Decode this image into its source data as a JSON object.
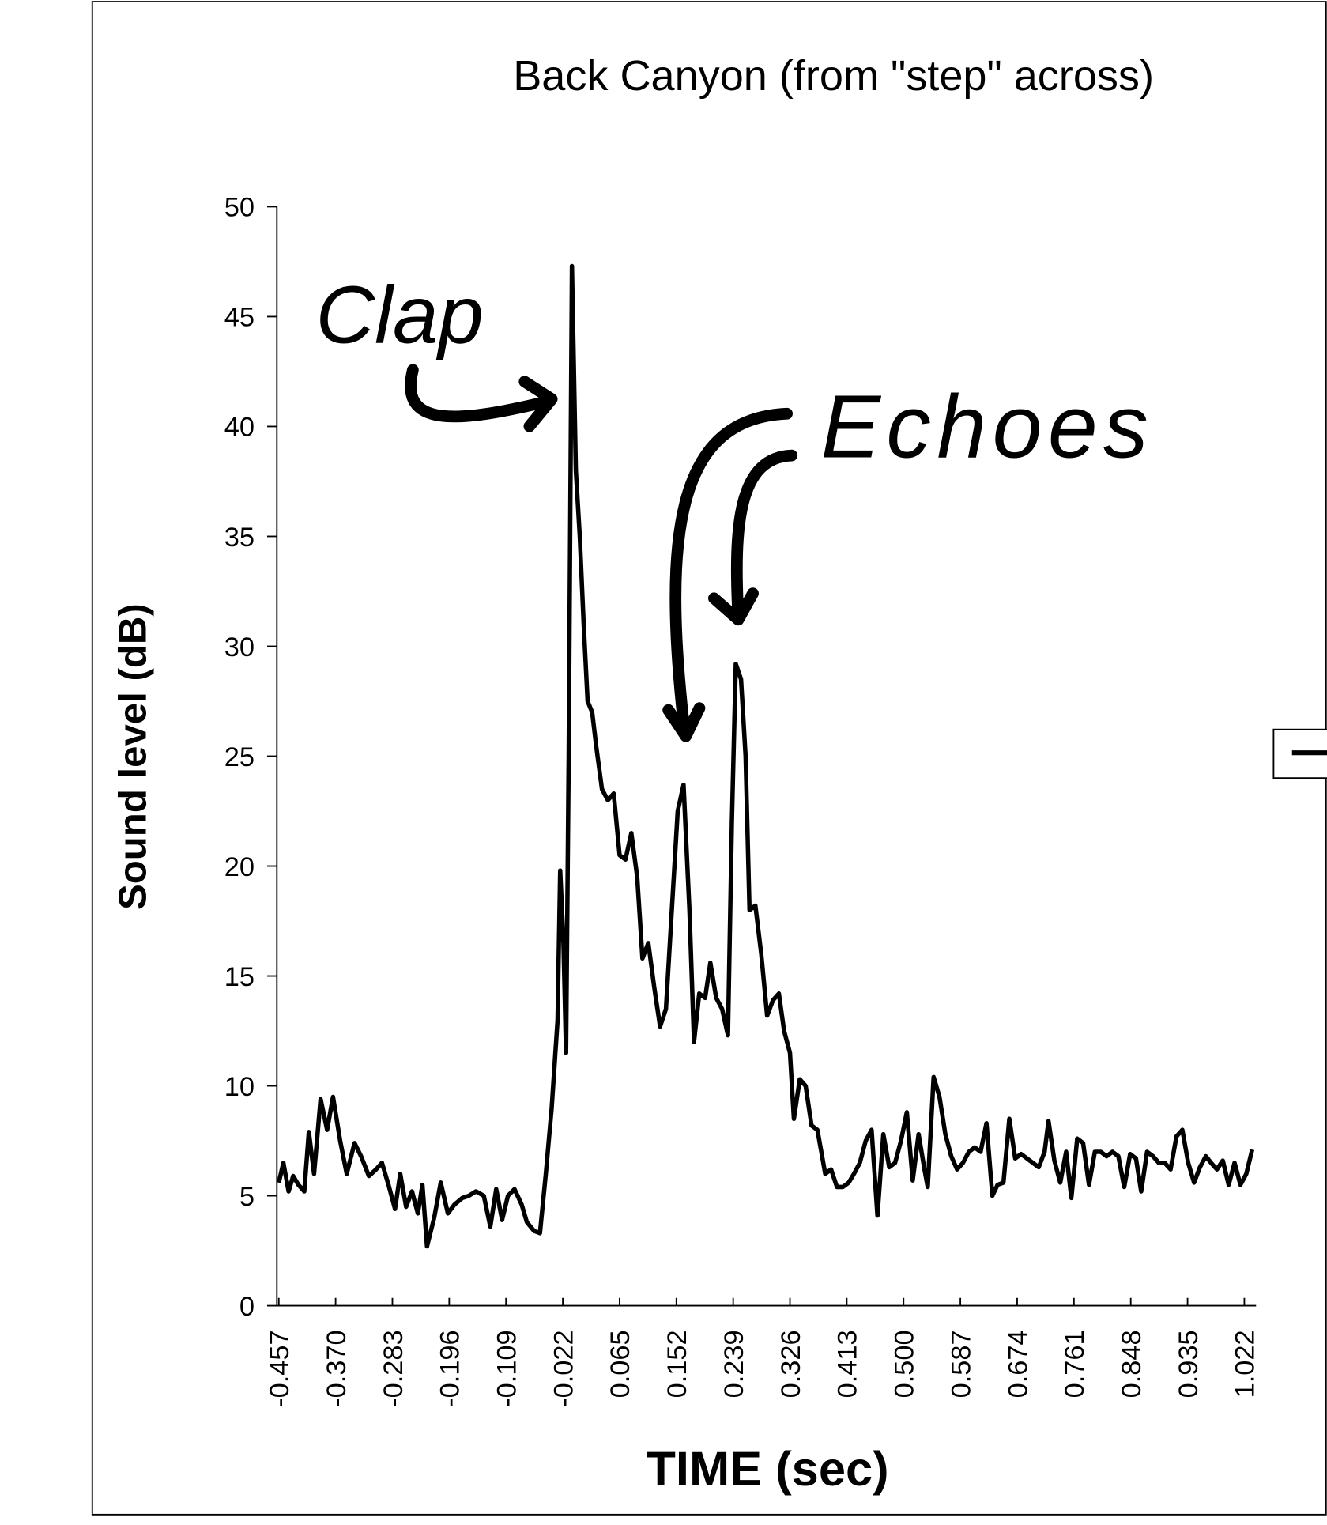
{
  "chart_data": {
    "type": "line",
    "title": "Back Canyon (from \"step\" across)",
    "x_label": "TIME (sec)",
    "y_label": "Sound level (dB)",
    "annotations": [
      "Clap",
      "Echoes"
    ],
    "color": "#000000",
    "xlim": [
      -0.457,
      1.037
    ],
    "ylim": [
      0,
      50
    ],
    "yticks": [
      0,
      5,
      10,
      15,
      20,
      25,
      30,
      35,
      40,
      45,
      50
    ],
    "xticks": [
      -0.457,
      {
        "value": -0.37,
        "label": "-0.370"
      },
      -0.283,
      -0.196,
      -0.109,
      -0.022,
      0.065,
      0.152,
      0.239,
      0.326,
      0.413,
      {
        "value": 0.5,
        "label": "0.500"
      },
      0.587,
      0.674,
      0.761,
      0.848,
      0.935,
      1.022
    ],
    "x": [
      -0.457,
      -0.45,
      -0.442,
      -0.435,
      -0.427,
      -0.418,
      -0.411,
      -0.403,
      -0.393,
      -0.383,
      -0.374,
      -0.363,
      -0.353,
      -0.341,
      -0.331,
      -0.319,
      -0.308,
      -0.299,
      -0.289,
      -0.279,
      -0.271,
      -0.262,
      -0.253,
      -0.244,
      -0.237,
      -0.23,
      -0.219,
      -0.209,
      -0.198,
      -0.188,
      -0.176,
      -0.166,
      -0.155,
      -0.143,
      -0.133,
      -0.124,
      -0.115,
      -0.106,
      -0.096,
      -0.085,
      -0.077,
      -0.066,
      -0.057,
      -0.048,
      -0.039,
      -0.03,
      -0.026,
      -0.021,
      -0.017,
      -0.013,
      -0.008,
      -0.002,
      0.004,
      0.01,
      0.016,
      0.023,
      0.029,
      0.038,
      0.047,
      0.056,
      0.065,
      0.074,
      0.083,
      0.092,
      0.1,
      0.109,
      0.118,
      0.127,
      0.136,
      0.145,
      0.154,
      0.163,
      0.172,
      0.179,
      0.187,
      0.196,
      0.204,
      0.213,
      0.222,
      0.231,
      0.237,
      0.243,
      0.251,
      0.258,
      0.264,
      0.273,
      0.282,
      0.291,
      0.3,
      0.309,
      0.317,
      0.326,
      0.332,
      0.341,
      0.35,
      0.359,
      0.368,
      0.38,
      0.389,
      0.398,
      0.407,
      0.416,
      0.424,
      0.433,
      0.442,
      0.451,
      0.46,
      0.469,
      0.478,
      0.487,
      0.496,
      0.505,
      0.514,
      0.523,
      0.532,
      0.537,
      0.546,
      0.555,
      0.564,
      0.573,
      0.582,
      0.591,
      0.6,
      0.609,
      0.618,
      0.627,
      0.636,
      0.644,
      0.653,
      0.662,
      0.671,
      0.68,
      0.689,
      0.698,
      0.707,
      0.716,
      0.722,
      0.731,
      0.74,
      0.749,
      0.757,
      0.766,
      0.775,
      0.784,
      0.793,
      0.802,
      0.811,
      0.82,
      0.829,
      0.838,
      0.847,
      0.856,
      0.864,
      0.873,
      0.882,
      0.891,
      0.9,
      0.909,
      0.918,
      0.927,
      0.936,
      0.945,
      0.954,
      0.963,
      0.971,
      0.98,
      0.989,
      0.998,
      1.007,
      1.016,
      1.025,
      1.034
    ],
    "values": [
      5.6,
      6.5,
      5.2,
      5.9,
      5.5,
      5.2,
      7.9,
      6.0,
      9.4,
      8.0,
      9.5,
      7.5,
      6.0,
      7.4,
      6.8,
      5.9,
      6.2,
      6.5,
      5.5,
      4.4,
      6.0,
      4.5,
      5.2,
      4.2,
      5.5,
      2.7,
      4.0,
      5.6,
      4.2,
      4.6,
      4.9,
      5.0,
      5.2,
      5.0,
      3.6,
      5.3,
      3.9,
      5.0,
      5.3,
      4.6,
      3.8,
      3.4,
      3.3,
      6.0,
      9.0,
      13,
      19.8,
      16.5,
      11.5,
      25,
      47.3,
      38,
      35,
      31,
      27.5,
      27,
      25.5,
      23.5,
      23,
      23.3,
      20.5,
      20.3,
      21.5,
      19.5,
      15.8,
      16.5,
      14.5,
      12.7,
      13.5,
      18,
      22.5,
      23.7,
      18,
      12,
      14.2,
      14,
      15.6,
      14,
      13.5,
      12.3,
      22,
      29.2,
      28.5,
      25,
      18,
      18.2,
      16,
      13.2,
      13.9,
      14.2,
      12.5,
      11.5,
      8.5,
      10.3,
      10,
      8.2,
      8,
      6,
      6.2,
      5.4,
      5.4,
      5.6,
      6,
      6.5,
      7.5,
      8.0,
      4.1,
      7.8,
      6.3,
      6.5,
      7.5,
      8.8,
      5.7,
      7.8,
      6.2,
      5.4,
      10.4,
      9.5,
      7.8,
      6.8,
      6.2,
      6.5,
      7.0,
      7.2,
      7.0,
      8.3,
      5.0,
      5.5,
      5.6,
      8.5,
      6.7,
      6.9,
      6.7,
      6.5,
      6.3,
      7.0,
      8.4,
      6.6,
      5.6,
      7.0,
      4.9,
      7.6,
      7.4,
      5.5,
      7.0,
      7.0,
      6.8,
      7.0,
      6.8,
      5.4,
      6.9,
      6.7,
      5.2,
      7.0,
      6.8,
      6.5,
      6.5,
      6.2,
      7.7,
      8.0,
      6.5,
      5.6,
      6.3,
      6.8,
      6.5,
      6.2,
      6.6,
      5.5,
      6.5,
      5.5,
      6.0,
      7.1
    ]
  }
}
